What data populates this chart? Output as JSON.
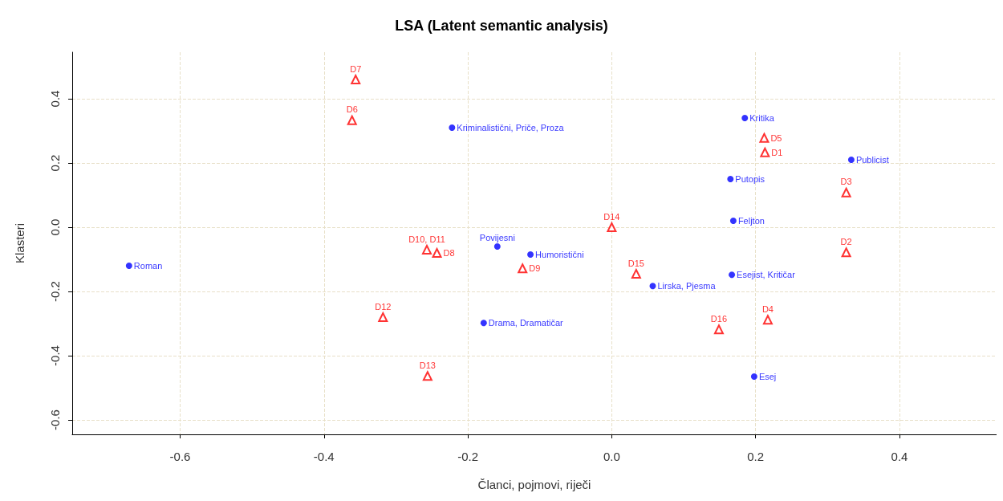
{
  "chart_data": {
    "type": "scatter",
    "title": "LSA (Latent semantic analysis)",
    "xlabel": "Članci, pojmovi, riječi",
    "ylabel": "Klasteri",
    "xlim": [
      -0.75,
      0.535
    ],
    "xticks": [
      -0.6,
      -0.4,
      -0.2,
      {
        "value": 0,
        "label": "0.0"
      },
      0.2,
      0.4
    ],
    "ylim": [
      -0.645,
      0.545
    ],
    "yticks": [
      -0.6,
      -0.4,
      -0.2,
      {
        "value": 0,
        "label": "0.0"
      },
      0.2,
      0.4
    ],
    "grid": true,
    "legend": false,
    "series": [
      {
        "name": "Roman",
        "color": "#0000ff",
        "marker": "circle",
        "x": [
          -0.671
        ],
        "values": [
          -0.12
        ]
      },
      {
        "name": "Kriminalistični, Priče, Proza",
        "color": "#0000ff",
        "marker": "circle",
        "x": [
          -0.222
        ],
        "values": [
          0.31
        ]
      },
      {
        "name": "Kritika",
        "color": "#0000ff",
        "marker": "circle",
        "x": [
          0.185
        ],
        "values": [
          0.34
        ]
      },
      {
        "name": "Publicist",
        "color": "#0000ff",
        "marker": "circle",
        "x": [
          0.333
        ],
        "values": [
          0.21
        ]
      },
      {
        "name": "Putopis",
        "color": "#0000ff",
        "marker": "circle",
        "x": [
          0.165
        ],
        "values": [
          0.15
        ]
      },
      {
        "name": "Feljton",
        "color": "#0000ff",
        "marker": "circle",
        "x": [
          0.169
        ],
        "values": [
          0.02
        ]
      },
      {
        "name": "Povijesni",
        "color": "#0000ff",
        "marker": "circle",
        "x": [
          -0.159
        ],
        "values": [
          -0.06
        ]
      },
      {
        "name": "Humoristični",
        "color": "#0000ff",
        "marker": "circle",
        "x": [
          -0.113
        ],
        "values": [
          -0.085
        ]
      },
      {
        "name": "Esejist, Kritičar",
        "color": "#0000ff",
        "marker": "circle",
        "x": [
          0.167
        ],
        "values": [
          -0.148
        ]
      },
      {
        "name": "Lirska, Pjesma",
        "color": "#0000ff",
        "marker": "circle",
        "x": [
          0.057
        ],
        "values": [
          -0.183
        ]
      },
      {
        "name": "Drama, Dramatičar",
        "color": "#0000ff",
        "marker": "circle",
        "x": [
          -0.178
        ],
        "values": [
          -0.298
        ]
      },
      {
        "name": "Esej",
        "color": "#0000ff",
        "marker": "circle",
        "x": [
          0.198
        ],
        "values": [
          -0.465
        ]
      },
      {
        "name": "D7",
        "color": "#ff0000",
        "marker": "triangle",
        "x": [
          -0.356
        ],
        "values": [
          0.46
        ]
      },
      {
        "name": "D6",
        "color": "#ff0000",
        "marker": "triangle",
        "x": [
          -0.361
        ],
        "values": [
          0.333
        ]
      },
      {
        "name": "D5",
        "color": "#ff0000",
        "marker": "triangle",
        "x": [
          0.212
        ],
        "values": [
          0.278
        ]
      },
      {
        "name": "D1",
        "color": "#ff0000",
        "marker": "triangle",
        "x": [
          0.213
        ],
        "values": [
          0.233
        ]
      },
      {
        "name": "D3",
        "color": "#ff0000",
        "marker": "triangle",
        "x": [
          0.326
        ],
        "values": [
          0.108
        ]
      },
      {
        "name": "D14",
        "color": "#ff0000",
        "marker": "triangle",
        "x": [
          0.0
        ],
        "values": [
          0.0
        ]
      },
      {
        "name": "D2",
        "color": "#ff0000",
        "marker": "triangle",
        "x": [
          0.326
        ],
        "values": [
          -0.078
        ]
      },
      {
        "name": "D10, D11",
        "color": "#ff0000",
        "marker": "triangle",
        "x": [
          -0.257
        ],
        "values": [
          -0.07
        ]
      },
      {
        "name": "D8",
        "color": "#ff0000",
        "marker": "triangle",
        "x": [
          -0.243
        ],
        "values": [
          -0.08
        ]
      },
      {
        "name": "D9",
        "color": "#ff0000",
        "marker": "triangle",
        "x": [
          -0.124
        ],
        "values": [
          -0.128
        ]
      },
      {
        "name": "D15",
        "color": "#ff0000",
        "marker": "triangle",
        "x": [
          0.034
        ],
        "values": [
          -0.145
        ]
      },
      {
        "name": "D12",
        "color": "#ff0000",
        "marker": "triangle",
        "x": [
          -0.318
        ],
        "values": [
          -0.28
        ]
      },
      {
        "name": "D4",
        "color": "#ff0000",
        "marker": "triangle",
        "x": [
          0.217
        ],
        "values": [
          -0.288
        ]
      },
      {
        "name": "D16",
        "color": "#ff0000",
        "marker": "triangle",
        "x": [
          0.149
        ],
        "values": [
          -0.318
        ]
      },
      {
        "name": "D13",
        "color": "#ff0000",
        "marker": "triangle",
        "x": [
          -0.256
        ],
        "values": [
          -0.463
        ]
      }
    ]
  }
}
